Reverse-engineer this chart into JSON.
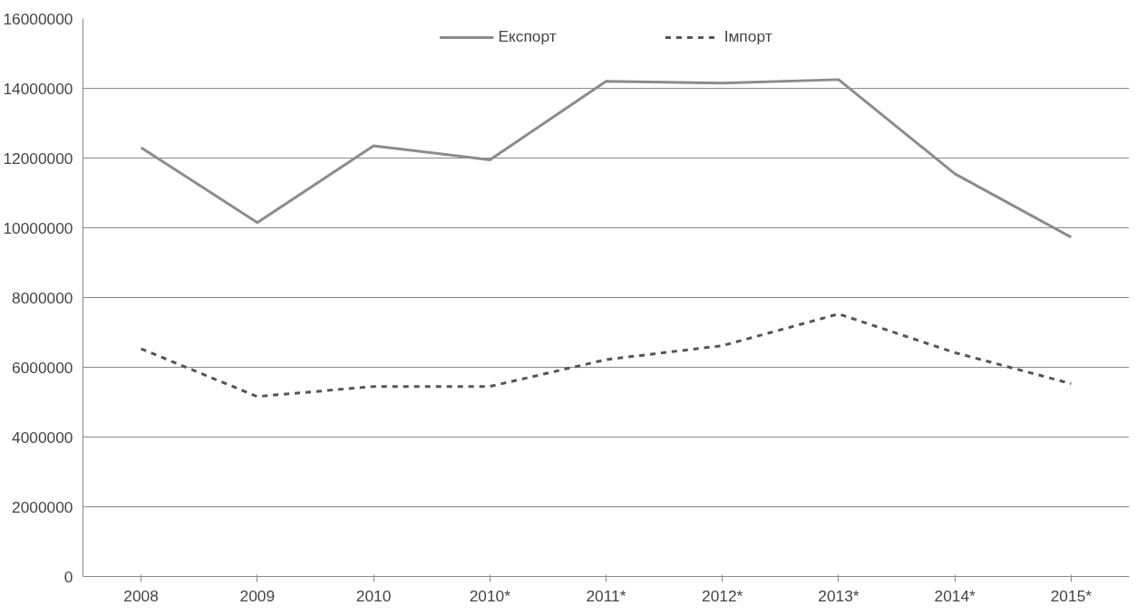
{
  "chart_data": {
    "type": "line",
    "categories": [
      "2008",
      "2009",
      "2010",
      "2010*",
      "2011*",
      "2012*",
      "2013*",
      "2014*",
      "2015*"
    ],
    "series": [
      {
        "name": "Експорт",
        "color": "#8c8c8c",
        "line_style": "solid",
        "values": [
          12300000,
          10150000,
          12350000,
          11950000,
          14200000,
          14150000,
          14250000,
          11550000,
          9730000
        ]
      },
      {
        "name": "Імпорт",
        "color": "#555555",
        "line_style": "dashed",
        "values": [
          6530000,
          5160000,
          5450000,
          5450000,
          6220000,
          6620000,
          7530000,
          6420000,
          5530000
        ]
      }
    ],
    "ylim": [
      0,
      16000000
    ],
    "yticks": [
      0,
      2000000,
      4000000,
      6000000,
      8000000,
      10000000,
      12000000,
      14000000,
      16000000
    ],
    "grid": "y",
    "legend": "top",
    "marker": "none"
  }
}
